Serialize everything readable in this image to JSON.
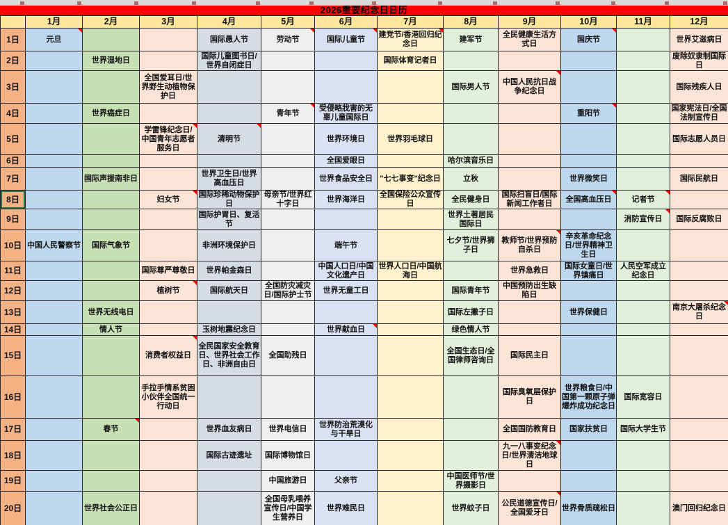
{
  "title": "2026重要纪念日日历",
  "colors": {
    "title_bg": "#FF0000",
    "title_text": "#000000",
    "header_bg": "#FFE699",
    "day_col_bg": "#F4B183",
    "grid_border": "#262626",
    "comment_marker": "#FF0000",
    "selection_outline": "#217346",
    "top_strip_bg": "#D9D9D9",
    "top_strip_mark": "#A05050",
    "month_bg": [
      "#BDD7EE",
      "#C6E0B4",
      "#FCE4D6",
      "#D6DCE4",
      "#EFEFEF",
      "#D9E1F2",
      "#FFF2CC",
      "#E2EFDA",
      "#FCE4D6",
      "#BDD7EE",
      "#E2EFDA",
      "#FCE4D6"
    ]
  },
  "months": [
    "1月",
    "2月",
    "3月",
    "4月",
    "5月",
    "6月",
    "7月",
    "8月",
    "9月",
    "10月",
    "11月",
    "12月"
  ],
  "selected_day": "8日",
  "rows": [
    {
      "day": "1日",
      "entries": [
        "元旦",
        "",
        "",
        "国际愚人节",
        "劳动节",
        "国际儿童节",
        "建党节/香港回归纪念日",
        "建军节",
        "全民健康生活方式日",
        "国庆节",
        "",
        "世界艾滋病日"
      ]
    },
    {
      "day": "2日",
      "entries": [
        "",
        "世界湿地日",
        "",
        "国际儿童图书日/世界自闭症日",
        "",
        "",
        "国际体育记者日",
        "",
        "",
        "",
        "",
        "废除奴隶制国际日"
      ]
    },
    {
      "day": "3日",
      "entries": [
        "",
        "",
        "全国爱耳日/世界野生动植物保护日",
        "",
        "",
        "",
        "",
        "国际男人节",
        "中国人民抗日战争纪念日",
        "",
        "",
        "国际残疾人日"
      ]
    },
    {
      "day": "4日",
      "entries": [
        "",
        "世界癌症日",
        "",
        "",
        "青年节",
        "受侵略戕害的无辜儿童国际日",
        "",
        "",
        "",
        "重阳节",
        "",
        "国家宪法日/全国法制宣传日"
      ]
    },
    {
      "day": "5日",
      "entries": [
        "",
        "",
        "学雷锋纪念日/中国青年志愿者服务日",
        "清明节",
        "",
        "世界环境日",
        "世界羽毛球日",
        "",
        "",
        "",
        "",
        "国际志愿人员日"
      ]
    },
    {
      "day": "6日",
      "entries": [
        "",
        "",
        "",
        "",
        "",
        "全国爱眼日",
        "",
        "哈尔滨音乐日",
        "",
        "",
        "",
        ""
      ]
    },
    {
      "day": "7日",
      "entries": [
        "",
        "国际声援南非日",
        "",
        "世界卫生日/世界高血压日",
        "",
        "世界食品安全日",
        "\"七七事变\"纪念日",
        "立秋",
        "",
        "世界微笑日",
        "",
        "国际民航日"
      ]
    },
    {
      "day": "8日",
      "entries": [
        "",
        "",
        "妇女节",
        "国际珍稀动物保护日",
        "母亲节/世界红十字日",
        "世界海洋日",
        "全国保险公众宣传日",
        "全民健身日",
        "国际扫盲日/国际新闻工作者日",
        "全国高血压日",
        "记者节",
        ""
      ]
    },
    {
      "day": "9日",
      "entries": [
        "",
        "",
        "",
        "国际护胃日、复活节",
        "",
        "",
        "",
        "世界土著居民国际日",
        "",
        "",
        "消防宣传日",
        "国际反腐败日"
      ]
    },
    {
      "day": "10日",
      "entries": [
        "中国人民警察节",
        "国际气象节",
        "",
        "非洲环境保护日",
        "",
        "端午节",
        "",
        "七夕节/世界狮子日",
        "教师节/世界预防自杀日",
        "辛亥革命纪念日/世界精神卫生日",
        "",
        ""
      ]
    },
    {
      "day": "11日",
      "entries": [
        "",
        "",
        "国际尊严尊敬日",
        "世界帕金森日",
        "",
        "中国人口日/中国文化遗产日",
        "世界人口日/中国航海日",
        "",
        "世界急救日",
        "国际女童日/世界镇痛日",
        "人民空军成立纪念日",
        ""
      ]
    },
    {
      "day": "12日",
      "entries": [
        "",
        "",
        "植树节",
        "国际航天日",
        "全国防灾减灾日/国际护士节",
        "世界无童工日",
        "",
        "国际青年节",
        "中国预防出生缺陷日",
        "",
        "",
        ""
      ]
    },
    {
      "day": "13日",
      "entries": [
        "",
        "世界无线电日",
        "",
        "",
        "",
        "",
        "",
        "国际左撇子日",
        "",
        "世界保健日",
        "",
        "南京大屠杀纪念日"
      ]
    },
    {
      "day": "14日",
      "entries": [
        "",
        "情人节",
        "",
        "玉树地震纪念日",
        "",
        "世界献血日",
        "",
        "绿色情人节",
        "",
        "",
        "",
        ""
      ]
    },
    {
      "day": "15日",
      "entries": [
        "",
        "",
        "消费者权益日",
        "全民国家安全教育日、世界社会工作日、非洲自由日",
        "全国助残日",
        "",
        "",
        "全国生态日/全国律师咨询日",
        "国际民主日",
        "",
        "",
        ""
      ]
    },
    {
      "day": "16日",
      "entries": [
        "",
        "",
        "手拉手情系贫困小伙伴全国统一行动日",
        "",
        "",
        "",
        "",
        "",
        "国际臭氧层保护日",
        "世界粮食日/中国第一颗原子弹爆炸成功纪念日",
        "国际宽容日",
        ""
      ]
    },
    {
      "day": "17日",
      "entries": [
        "",
        "春节",
        "",
        "世界血友病日",
        "世界电信日",
        "世界防治荒漠化与干旱日",
        "",
        "",
        "全国国防教育日",
        "国家扶贫日",
        "国际大学生节",
        ""
      ]
    },
    {
      "day": "18日",
      "entries": [
        "",
        "",
        "",
        "国际古迹遗址",
        "国际博物馆日",
        "",
        "",
        "",
        "九一八事变纪念日/世界清洁地球日",
        "",
        "",
        ""
      ]
    },
    {
      "day": "19日",
      "entries": [
        "",
        "",
        "",
        "",
        "中国旅游日",
        "父亲节",
        "",
        "中国医师节/世界摄影日",
        "",
        "",
        "",
        ""
      ]
    },
    {
      "day": "20日",
      "entries": [
        "",
        "世界社会公正日",
        "",
        "",
        "全国母乳喂养宣传日/中国学生营养日",
        "世界难民日",
        "",
        "世界蚊子日",
        "公民道德宣传日/全国爱牙日",
        "世界骨质疏松日",
        "",
        "澳门回归纪念日"
      ]
    }
  ],
  "comment_markers": [
    {
      "day": "1日",
      "month": "1月"
    },
    {
      "day": "1日",
      "month": "5月"
    },
    {
      "day": "1日",
      "month": "6月"
    },
    {
      "day": "1日",
      "month": "7月"
    },
    {
      "day": "1日",
      "month": "10月"
    },
    {
      "day": "3日",
      "month": "9月"
    },
    {
      "day": "4日",
      "month": "5月"
    },
    {
      "day": "4日",
      "month": "10月"
    },
    {
      "day": "5日",
      "month": "3月"
    },
    {
      "day": "5日",
      "month": "4月"
    },
    {
      "day": "8日",
      "month": "3月"
    },
    {
      "day": "8日",
      "month": "10月"
    },
    {
      "day": "8日",
      "month": "11月"
    },
    {
      "day": "9日",
      "month": "11月"
    },
    {
      "day": "10日",
      "month": "9月"
    },
    {
      "day": "12日",
      "month": "3月"
    },
    {
      "day": "13日",
      "month": "12月"
    },
    {
      "day": "14日",
      "month": "6月"
    },
    {
      "day": "15日",
      "month": "3月"
    },
    {
      "day": "17日",
      "month": "2月"
    },
    {
      "day": "18日",
      "month": "9月"
    },
    {
      "day": "20日",
      "month": "9月"
    }
  ]
}
